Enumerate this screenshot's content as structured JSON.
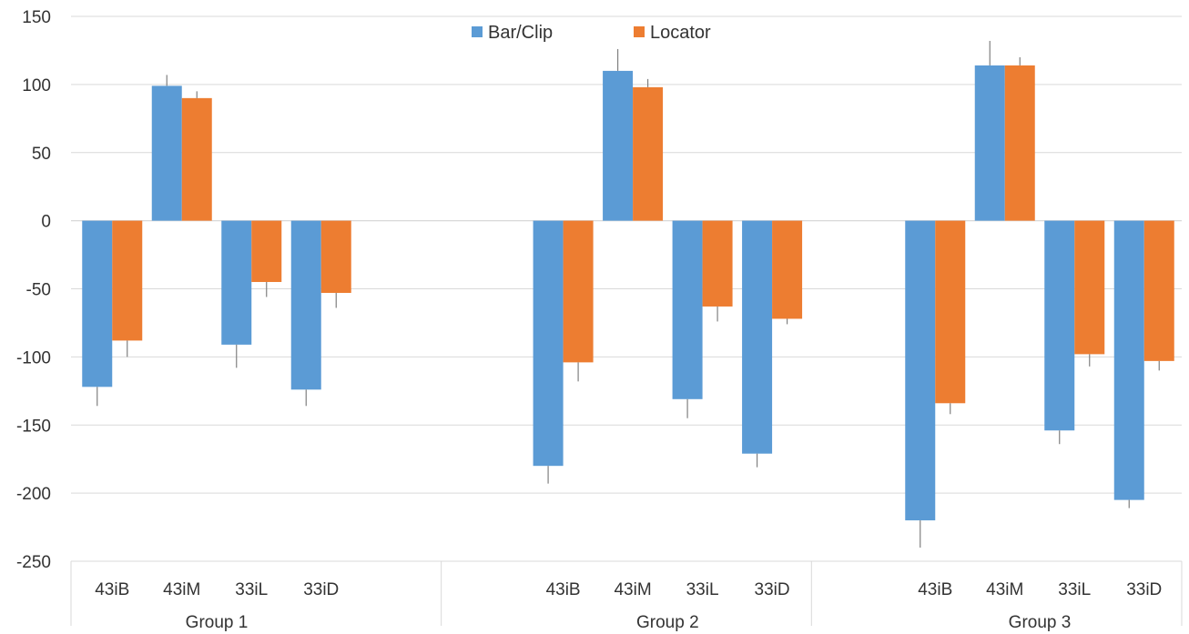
{
  "chart_data": {
    "type": "bar",
    "groups": [
      {
        "name": "Group 1",
        "categories": [
          "43iB",
          "43iM",
          "33iL",
          "33iD"
        ]
      },
      {
        "name": "Group 2",
        "categories": [
          "43iB",
          "43iM",
          "33iL",
          "33iD"
        ]
      },
      {
        "name": "Group 3",
        "categories": [
          "43iB",
          "43iM",
          "33iL",
          "33iD"
        ]
      }
    ],
    "series": [
      {
        "name": "Bar/Clip",
        "color": "#5B9BD5",
        "values": [
          -122,
          99,
          -91,
          -124,
          -180,
          110,
          -131,
          -171,
          -220,
          114,
          -154,
          -205
        ],
        "error_tips": [
          -136,
          107,
          -108,
          -136,
          -193,
          126,
          -145,
          -181,
          -240,
          132,
          -164,
          -211
        ]
      },
      {
        "name": "Locator",
        "color": "#ED7D31",
        "values": [
          -88,
          90,
          -45,
          -53,
          -104,
          98,
          -63,
          -72,
          -134,
          114,
          -98,
          -103
        ],
        "error_tips": [
          -100,
          95,
          -56,
          -64,
          -118,
          104,
          -74,
          -76,
          -142,
          120,
          -107,
          -110
        ]
      }
    ],
    "y_ticks": [
      "150",
      "100",
      "50",
      "0",
      "-50",
      "-100",
      "-150",
      "-200",
      "-250"
    ],
    "ylim": [
      -250,
      150
    ],
    "grid": true,
    "legend_position": "top-center",
    "title": "",
    "xlabel": "",
    "ylabel": ""
  }
}
